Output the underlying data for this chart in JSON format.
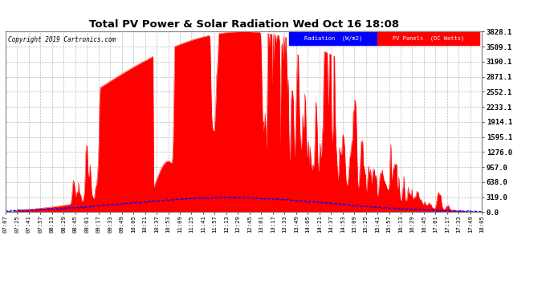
{
  "title": "Total PV Power & Solar Radiation Wed Oct 16 18:08",
  "copyright_text": "Copyright 2019 Cartronics.com",
  "ymax": 3828.1,
  "ymin": 0.0,
  "bg_color": "#ffffff",
  "plot_bg_color": "#ffffff",
  "grid_color": "#bbbbbb",
  "red_color": "#ff0000",
  "blue_color": "#0000ff",
  "legend_radiation_bg": "#0000ff",
  "legend_pv_bg": "#ff0000",
  "legend_radiation_text": "Radiation  (W/m2)",
  "legend_pv_text": "PV Panels  (DC Watts)",
  "y_ticks": [
    0.0,
    319.0,
    638.0,
    957.0,
    1276.0,
    1595.1,
    1914.1,
    2233.1,
    2552.1,
    2871.1,
    3190.1,
    3509.1,
    3828.1
  ],
  "x_labels": [
    "07:07",
    "07:25",
    "07:41",
    "07:57",
    "08:13",
    "08:29",
    "08:45",
    "09:01",
    "09:17",
    "09:33",
    "09:49",
    "10:05",
    "10:21",
    "10:37",
    "10:53",
    "11:09",
    "11:25",
    "11:41",
    "11:57",
    "12:13",
    "12:29",
    "12:45",
    "13:01",
    "13:17",
    "13:33",
    "13:49",
    "14:05",
    "14:21",
    "14:37",
    "14:53",
    "15:09",
    "15:25",
    "15:41",
    "15:57",
    "16:13",
    "16:29",
    "16:45",
    "17:01",
    "17:17",
    "17:33",
    "17:49",
    "18:05"
  ]
}
